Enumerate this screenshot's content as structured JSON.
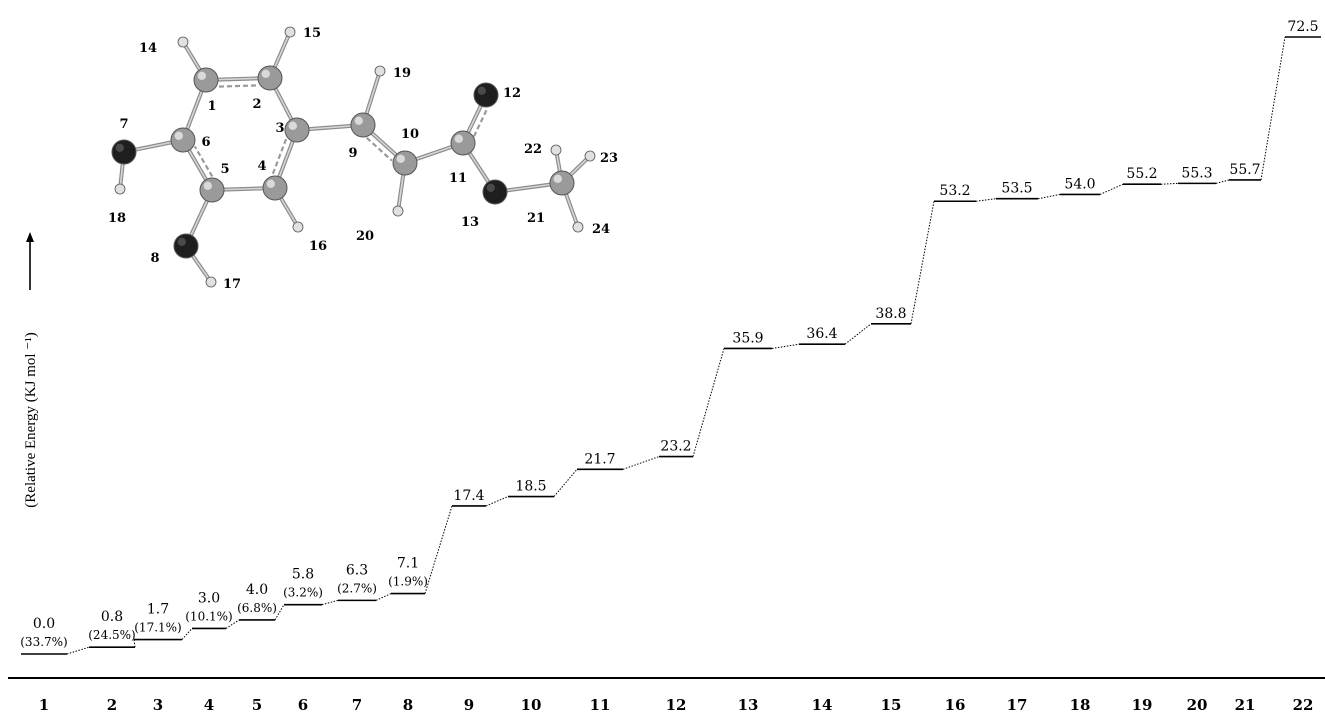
{
  "chart_data": {
    "type": "line",
    "subtype": "energy-level-diagram",
    "ylabel": "(Relative Energy (KJ mol ⁻¹)",
    "x": [
      1,
      2,
      3,
      4,
      5,
      6,
      7,
      8,
      9,
      10,
      11,
      12,
      13,
      14,
      15,
      16,
      17,
      18,
      19,
      20,
      21,
      22
    ],
    "energy_labels": [
      "0.0",
      "0.8",
      "1.7",
      "3.0",
      "4.0",
      "5.8",
      "6.3",
      "7.1",
      "17.4",
      "18.5",
      "21.7",
      "23.2",
      "35.9",
      "36.4",
      "38.8",
      "53.2",
      "53.5",
      "54.0",
      "55.2",
      "55.3",
      "55.7",
      "72.5"
    ],
    "values": [
      0.0,
      0.8,
      1.7,
      3.0,
      4.0,
      5.8,
      6.3,
      7.1,
      17.4,
      18.5,
      21.7,
      23.2,
      35.9,
      36.4,
      38.8,
      53.2,
      53.5,
      54.0,
      55.2,
      55.3,
      55.7,
      72.5
    ],
    "populations": [
      "(33.7%)",
      "(24.5%)",
      "(17.1%)",
      "(10.1%)",
      "(6.8%)",
      "(3.2%)",
      "(2.7%)",
      "(1.9%)"
    ],
    "ylim": [
      0,
      75
    ],
    "grid": false,
    "inset": {
      "type": "molecule-structure",
      "atom_labels": [
        "1",
        "2",
        "3",
        "4",
        "5",
        "6",
        "7",
        "8",
        "9",
        "10",
        "11",
        "12",
        "13",
        "14",
        "15",
        "16",
        "17",
        "18",
        "19",
        "20",
        "21",
        "22",
        "23",
        "24"
      ]
    }
  }
}
